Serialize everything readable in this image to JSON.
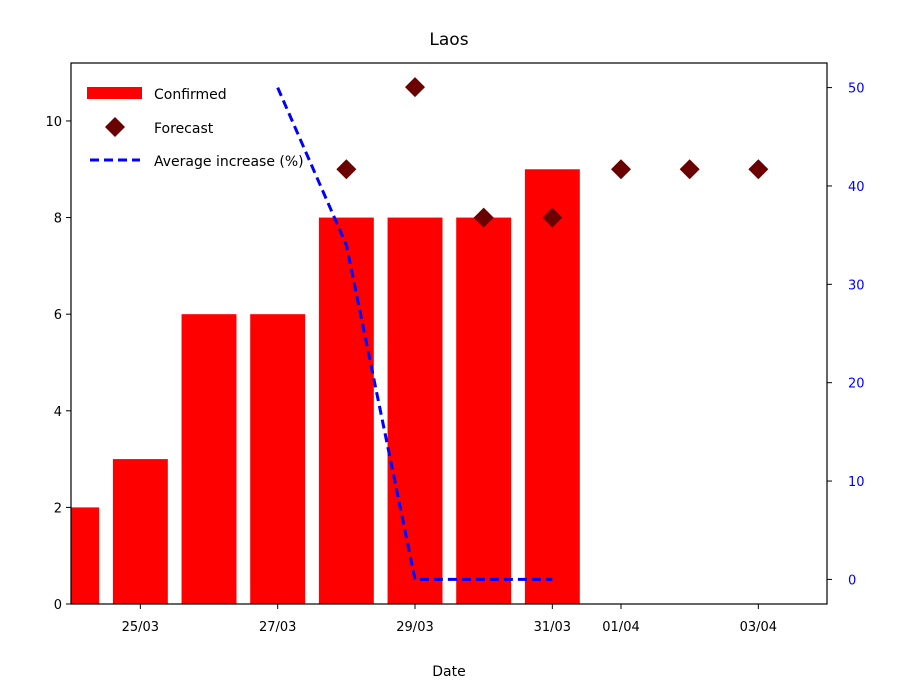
{
  "chart_data": {
    "type": "bar",
    "title": "Laos",
    "xlabel": "Date",
    "ylabel": "",
    "ylabel_right": "",
    "x_ticks": [
      "25/03",
      "27/03",
      "29/03",
      "31/03",
      "01/04",
      "03/04"
    ],
    "x_tick_days": [
      1,
      3,
      5,
      7,
      8,
      10
    ],
    "xlim_days": [
      -0.01,
      11
    ],
    "ylim": [
      0,
      11.2
    ],
    "yticks": [
      0,
      2,
      4,
      6,
      8,
      10
    ],
    "ylim_right": [
      -2.5,
      52.5
    ],
    "yticks_right": [
      0,
      10,
      20,
      30,
      40,
      50
    ],
    "legend": {
      "position": "top-left",
      "entries": [
        "Confirmed",
        "Forecast",
        "Average increase (%)"
      ]
    },
    "series": [
      {
        "name": "Confirmed",
        "kind": "bar",
        "color": "#ff0000",
        "x": [
          "24/03",
          "25/03",
          "26/03",
          "27/03",
          "28/03",
          "29/03",
          "30/03",
          "31/03"
        ],
        "x_days": [
          0,
          1,
          2,
          3,
          4,
          5,
          6,
          7
        ],
        "values": [
          2,
          3,
          6,
          6,
          8,
          8,
          8,
          9
        ]
      },
      {
        "name": "Forecast",
        "kind": "scatter",
        "color": "#6b0000",
        "marker": "diamond",
        "x": [
          "28/03",
          "29/03",
          "30/03",
          "31/03",
          "01/04",
          "02/04",
          "03/04"
        ],
        "x_days": [
          4,
          5,
          6,
          7,
          8,
          9,
          10
        ],
        "values": [
          9,
          10.7,
          8,
          8,
          9,
          9,
          9
        ]
      },
      {
        "name": "Average increase (%)",
        "kind": "line",
        "axis": "right",
        "color": "#0000ff",
        "style": "dashed",
        "x": [
          "27/03",
          "28/03",
          "29/03",
          "30/03",
          "31/03"
        ],
        "x_days": [
          3,
          4,
          5,
          6,
          7
        ],
        "values": [
          50,
          34,
          0,
          0,
          0
        ]
      }
    ]
  }
}
